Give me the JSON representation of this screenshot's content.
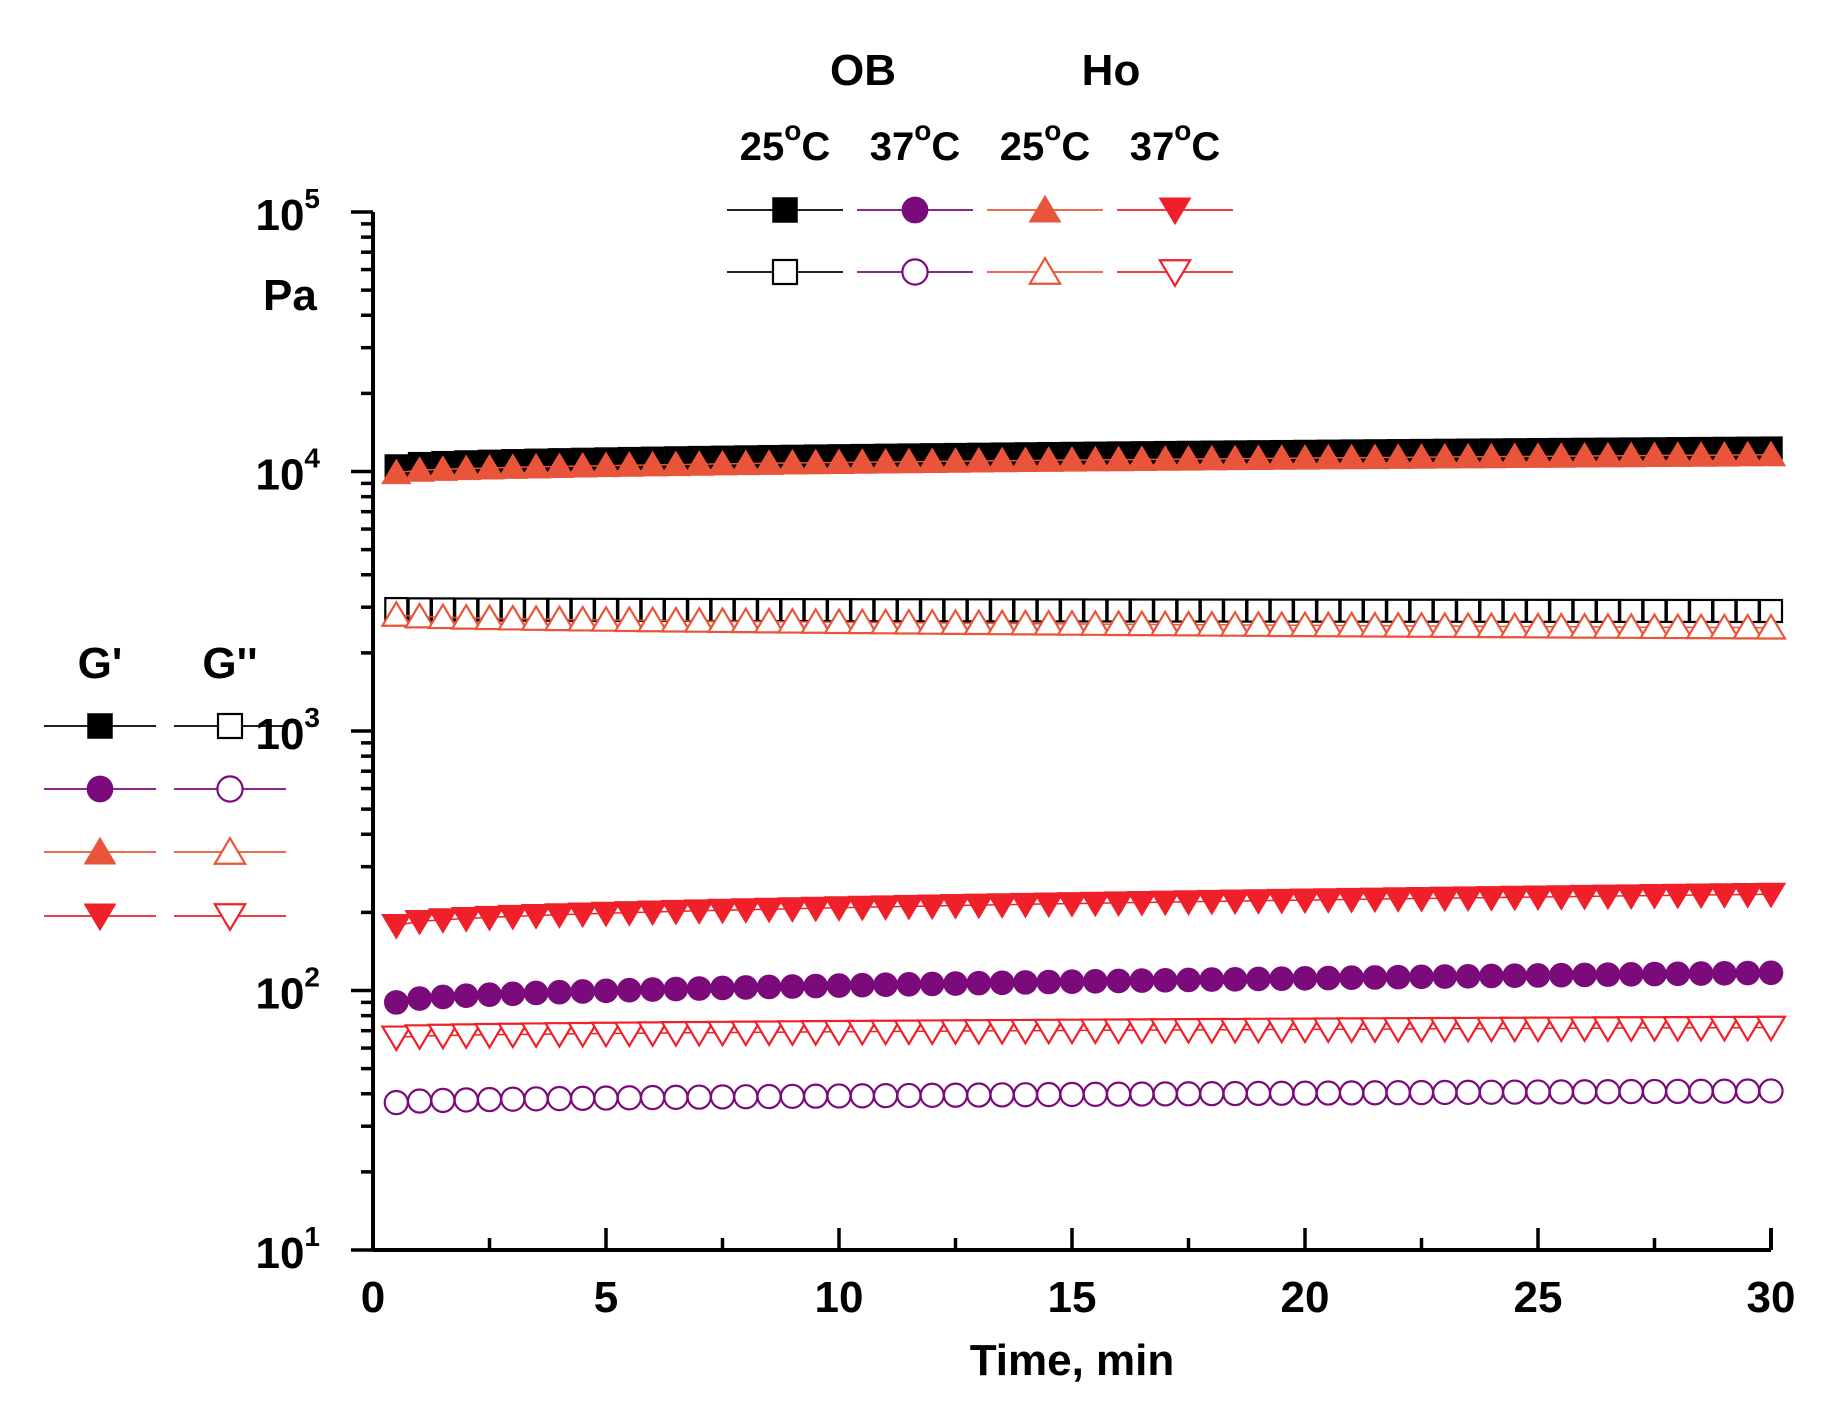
{
  "chart_data": {
    "type": "scatter",
    "title": "",
    "xlabel": "Time, min",
    "ylabel": "Pa",
    "xlim": [
      0,
      30
    ],
    "ylim": [
      10,
      100000
    ],
    "yscale": "log",
    "x_ticks": [
      "0",
      "5",
      "10",
      "15",
      "20",
      "25",
      "30"
    ],
    "y_ticks": [
      {
        "base": "10",
        "exp": "1"
      },
      {
        "base": "10",
        "exp": "2"
      },
      {
        "base": "10",
        "exp": "3"
      },
      {
        "base": "10",
        "exp": "4"
      },
      {
        "base": "10",
        "exp": "5"
      }
    ],
    "x": {
      "start": 0.5,
      "end": 30,
      "step": 0.5
    },
    "legend_top": {
      "groups": [
        "OB",
        "Ho"
      ],
      "temps": [
        {
          "t": "25",
          "deg": "o",
          "unit": "C"
        },
        {
          "t": "37",
          "deg": "o",
          "unit": "C"
        },
        {
          "t": "25",
          "deg": "o",
          "unit": "C"
        },
        {
          "t": "37",
          "deg": "o",
          "unit": "C"
        }
      ]
    },
    "legend_left": {
      "headers": [
        "G'",
        "G''"
      ]
    },
    "series": [
      {
        "name": "G' OB 25°C",
        "marker": "square",
        "filled": true,
        "color": "#000000",
        "start": 10500,
        "end": 12300
      },
      {
        "name": "G'' OB 25°C",
        "marker": "square",
        "filled": false,
        "color": "#000000",
        "start": 2950,
        "end": 2900
      },
      {
        "name": "G' OB 37°C",
        "marker": "circle",
        "filled": true,
        "color": "#7b0a7b",
        "start": 90,
        "end": 117
      },
      {
        "name": "G'' OB 37°C",
        "marker": "circle",
        "filled": false,
        "color": "#7b0a7b",
        "start": 37,
        "end": 41
      },
      {
        "name": "G' Ho 25°C",
        "marker": "triangle-up",
        "filled": true,
        "color": "#e8553a",
        "start": 9900,
        "end": 11600
      },
      {
        "name": "G'' Ho 25°C",
        "marker": "triangle-up",
        "filled": false,
        "color": "#e8553a",
        "start": 2800,
        "end": 2500
      },
      {
        "name": "G' Ho 37°C",
        "marker": "triangle-down",
        "filled": true,
        "color": "#f0202a",
        "start": 178,
        "end": 235
      },
      {
        "name": "G'' Ho 37°C",
        "marker": "triangle-down",
        "filled": false,
        "color": "#f0202a",
        "start": 66,
        "end": 72
      }
    ]
  }
}
